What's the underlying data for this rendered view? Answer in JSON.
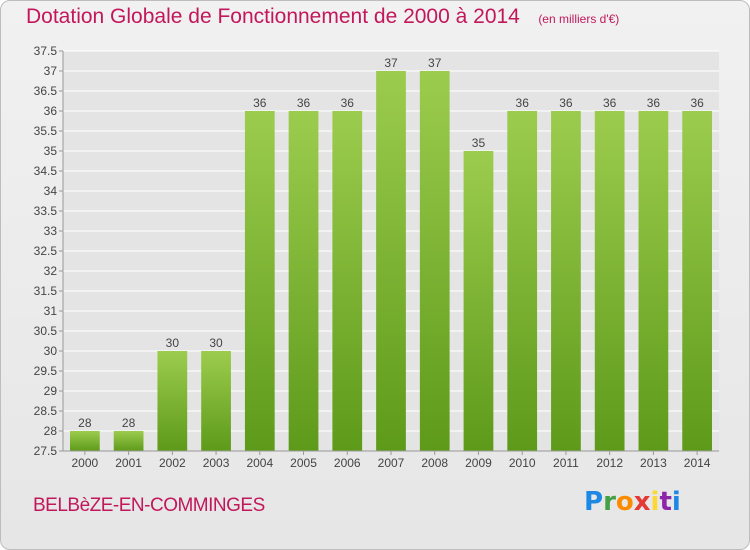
{
  "header": {
    "title": "Dotation Globale de Fonctionnement de 2000 à 2014",
    "unit": "(en milliers d'€)"
  },
  "footer": {
    "commune": "BELBèZE-EN-COMMINGES",
    "logo": {
      "text": "Proxiti",
      "letters": [
        "P",
        "r",
        "o",
        "x",
        "i",
        "t",
        "i"
      ],
      "colors": [
        "#1e88e5",
        "#43a047",
        "#fb8c00",
        "#e53935",
        "#fdd835",
        "#8e24aa",
        "#1e88e5"
      ]
    }
  },
  "chart_data": {
    "type": "bar",
    "title": "Dotation Globale de Fonctionnement de 2000 à 2014",
    "subtitle": "(en milliers d'€)",
    "xlabel": "",
    "ylabel": "",
    "categories": [
      "2000",
      "2001",
      "2002",
      "2003",
      "2004",
      "2005",
      "2006",
      "2007",
      "2008",
      "2009",
      "2010",
      "2011",
      "2012",
      "2013",
      "2014"
    ],
    "values": [
      28,
      28,
      30,
      30,
      36,
      36,
      36,
      37,
      37,
      35,
      36,
      36,
      36,
      36,
      36
    ],
    "data_labels": [
      "28",
      "28",
      "30",
      "30",
      "36",
      "36",
      "36",
      "37",
      "37",
      "35",
      "36",
      "36",
      "36",
      "36",
      "36"
    ],
    "ylim": [
      27.5,
      37.5
    ],
    "yticks": [
      27.5,
      28,
      28.5,
      29,
      29.5,
      30,
      30.5,
      31,
      31.5,
      32,
      32.5,
      33,
      33.5,
      34,
      34.5,
      35,
      35.5,
      36,
      36.5,
      37,
      37.5
    ],
    "ytick_labels": [
      "27.5",
      "28",
      "28.5",
      "29",
      "29.5",
      "30",
      "30.5",
      "31",
      "31.5",
      "32",
      "32.5",
      "33",
      "33.5",
      "34",
      "34.5",
      "35",
      "35.5",
      "36",
      "36.5",
      "37",
      "37.5"
    ],
    "grid": true,
    "legend": "none",
    "colors": {
      "bar_top": "#9ccc4e",
      "bar_bottom": "#5e9a1a",
      "text": "#444444",
      "grid": "#ffffff"
    }
  }
}
